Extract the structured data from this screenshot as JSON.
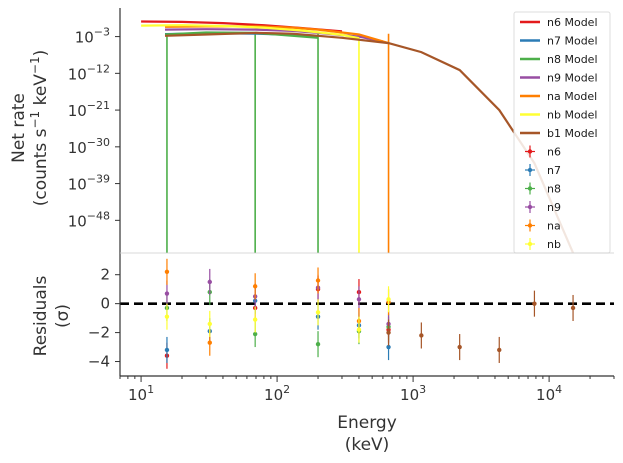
{
  "chart_data": {
    "type": "scatter",
    "xscale": "log",
    "xlim": [
      7,
      30000
    ],
    "x_tick_labels": [
      "10^1",
      "10^2",
      "10^3",
      "10^4"
    ],
    "xlabel": [
      "Energy",
      "(keV)"
    ],
    "top_panel": {
      "yscale": "log",
      "ylim_exp": [
        -56,
        4
      ],
      "ylabel": [
        "Net rate",
        "(counts s^-1 keV^-1)"
      ],
      "y_tick_labels": [
        "10^-3",
        "10^-12",
        "10^-21",
        "10^-30",
        "10^-39",
        "10^-48"
      ],
      "model_series": [
        {
          "name": "n6 Model",
          "color": "#e31a1c",
          "x": [
            10,
            20,
            40,
            80,
            150,
            300
          ],
          "log_y": [
            0.7,
            0.6,
            0.3,
            -0.2,
            -0.9,
            -1.7
          ]
        },
        {
          "name": "n7 Model",
          "color": "#2b7cb5",
          "x": [
            15,
            30,
            70,
            130,
            200
          ],
          "log_y": [
            -2.4,
            -2.2,
            -2.3,
            -2.6,
            -3.0
          ]
        },
        {
          "name": "n8 Model",
          "color": "#4daf4a",
          "x": [
            15,
            30,
            70,
            130,
            200
          ],
          "log_y": [
            -2.5,
            -2.0,
            -2.1,
            -2.8,
            -3.3
          ]
        },
        {
          "name": "n9 Model",
          "color": "#984ea3",
          "x": [
            15,
            30,
            70,
            130,
            200,
            400,
            600
          ],
          "log_y": [
            -1.3,
            -1.2,
            -1.3,
            -1.6,
            -2.1,
            -3.0,
            -4.2
          ]
        },
        {
          "name": "na Model",
          "color": "#ff7f00",
          "x": [
            15,
            30,
            70,
            130,
            200,
            400,
            660
          ],
          "log_y": [
            -0.6,
            -0.5,
            -0.5,
            -0.8,
            -1.3,
            -2.5,
            -4.6
          ]
        },
        {
          "name": "nb Model",
          "color": "#ffff33",
          "x": [
            10,
            20,
            40,
            80,
            150,
            300,
            400
          ],
          "log_y": [
            -0.3,
            -0.2,
            -0.4,
            -0.8,
            -1.5,
            -2.6,
            -3.4
          ]
        },
        {
          "name": "b1 Model",
          "color": "#a65628",
          "x": [
            15,
            30,
            70,
            130,
            300,
            660,
            1150,
            2200,
            4300,
            7800,
            15000
          ],
          "log_y": [
            -2.8,
            -2.5,
            -2.1,
            -2.3,
            -3.3,
            -4.6,
            -6.8,
            -11.2,
            -21.0,
            -34.0,
            -56.0
          ]
        }
      ],
      "data_series": [
        {
          "name": "n6",
          "color": "#e31a1c"
        },
        {
          "name": "n7",
          "color": "#2b7cb5"
        },
        {
          "name": "n8",
          "color": "#4daf4a"
        },
        {
          "name": "n9",
          "color": "#984ea3"
        },
        {
          "name": "na",
          "color": "#ff7f00"
        },
        {
          "name": "nb",
          "color": "#ffff33"
        }
      ],
      "drop_lines": [
        {
          "color": "#4daf4a",
          "x": 15.5
        },
        {
          "color": "#4daf4a",
          "x": 69
        },
        {
          "color": "#4daf4a",
          "x": 200
        },
        {
          "color": "#ffff33",
          "x": 400
        },
        {
          "color": "#ff7f00",
          "x": 660
        }
      ]
    },
    "bottom_panel": {
      "ylabel": [
        "Residuals",
        "(σ)"
      ],
      "ylim": [
        -5,
        3.5
      ],
      "y_tick_labels": [
        "2",
        "0",
        "-2",
        "-4"
      ],
      "y_ticks": [
        2,
        0,
        -2,
        -4
      ],
      "zero_line": 0,
      "residual_series": [
        {
          "name": "n6",
          "color": "#e31a1c",
          "points": [
            [
              15.5,
              -3.6,
              0.9
            ],
            [
              69,
              -0.3,
              0.9
            ],
            [
              200,
              1.0,
              0.9
            ],
            [
              400,
              0.8,
              0.9
            ],
            [
              660,
              -1.8,
              0.9
            ]
          ]
        },
        {
          "name": "n7",
          "color": "#2b7cb5",
          "points": [
            [
              15.5,
              -3.2,
              0.9
            ],
            [
              32,
              -1.9,
              0.9
            ],
            [
              69,
              0.2,
              0.9
            ],
            [
              200,
              -0.9,
              0.9
            ],
            [
              400,
              -1.5,
              0.9
            ],
            [
              660,
              -3.0,
              0.9
            ]
          ]
        },
        {
          "name": "n8",
          "color": "#4daf4a",
          "points": [
            [
              15.5,
              -0.3,
              0.9
            ],
            [
              32,
              0.8,
              0.9
            ],
            [
              69,
              -2.1,
              0.9
            ],
            [
              200,
              -2.8,
              0.9
            ],
            [
              400,
              -1.9,
              0.9
            ],
            [
              660,
              -1.6,
              0.9
            ]
          ]
        },
        {
          "name": "n9",
          "color": "#984ea3",
          "points": [
            [
              15.5,
              0.7,
              0.9
            ],
            [
              32,
              1.5,
              0.9
            ],
            [
              69,
              0.5,
              0.9
            ],
            [
              200,
              1.1,
              0.9
            ],
            [
              400,
              0.3,
              0.9
            ],
            [
              660,
              -1.4,
              0.9
            ]
          ]
        },
        {
          "name": "na",
          "color": "#ff7f00",
          "points": [
            [
              15.5,
              2.2,
              0.9
            ],
            [
              32,
              -2.7,
              0.9
            ],
            [
              69,
              1.2,
              0.9
            ],
            [
              200,
              1.6,
              0.9
            ],
            [
              400,
              -1.2,
              0.9
            ],
            [
              660,
              0.1,
              0.9
            ]
          ]
        },
        {
          "name": "nb",
          "color": "#ffff33",
          "points": [
            [
              15.5,
              -0.9,
              0.9
            ],
            [
              32,
              -1.4,
              0.9
            ],
            [
              69,
              -1.1,
              0.9
            ],
            [
              200,
              -0.6,
              0.9
            ],
            [
              400,
              -1.8,
              0.9
            ],
            [
              660,
              0.3,
              0.9
            ]
          ]
        },
        {
          "name": "b1",
          "color": "#a65628",
          "points": [
            [
              660,
              -2.0,
              0.9
            ],
            [
              1150,
              -2.2,
              0.9
            ],
            [
              2200,
              -3.0,
              0.9
            ],
            [
              4300,
              -3.2,
              0.9
            ],
            [
              7800,
              0.0,
              0.9
            ],
            [
              15000,
              -0.3,
              0.9
            ]
          ]
        }
      ]
    },
    "legend": {
      "placement": "top-right",
      "entries": [
        {
          "label": "n6 Model",
          "kind": "line",
          "color": "#e31a1c"
        },
        {
          "label": "n7 Model",
          "kind": "line",
          "color": "#2b7cb5"
        },
        {
          "label": "n8 Model",
          "kind": "line",
          "color": "#4daf4a"
        },
        {
          "label": "n9 Model",
          "kind": "line",
          "color": "#984ea3"
        },
        {
          "label": "na Model",
          "kind": "line",
          "color": "#ff7f00"
        },
        {
          "label": "nb Model",
          "kind": "line",
          "color": "#ffff33"
        },
        {
          "label": "b1 Model",
          "kind": "line",
          "color": "#a65628"
        },
        {
          "label": "n6",
          "kind": "point",
          "color": "#e31a1c"
        },
        {
          "label": "n7",
          "kind": "point",
          "color": "#2b7cb5"
        },
        {
          "label": "n8",
          "kind": "point",
          "color": "#4daf4a"
        },
        {
          "label": "n9",
          "kind": "point",
          "color": "#984ea3"
        },
        {
          "label": "na",
          "kind": "point",
          "color": "#ff7f00"
        },
        {
          "label": "nb",
          "kind": "point",
          "color": "#ffff33"
        }
      ]
    }
  }
}
